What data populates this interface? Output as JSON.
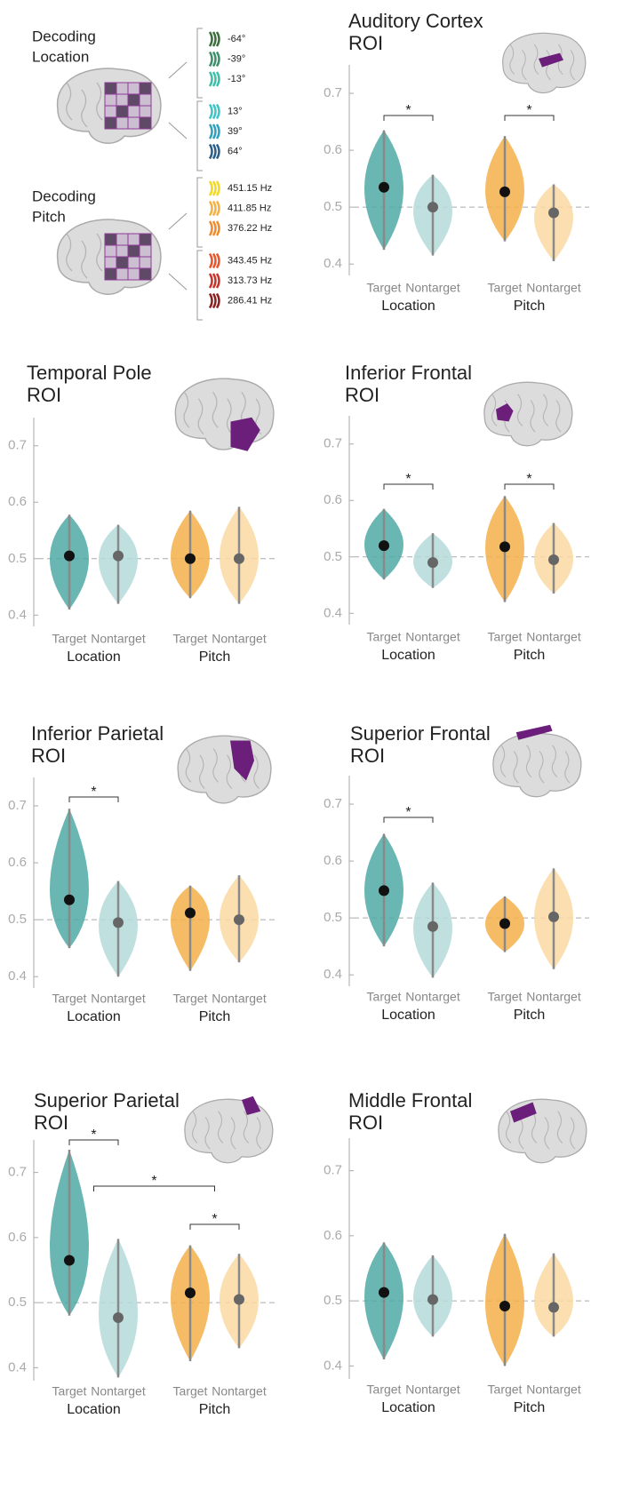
{
  "diagram": {
    "location": {
      "title": [
        "Decoding",
        "Location"
      ],
      "stimuli": [
        {
          "label": "-64°",
          "color": "#3a6e3c"
        },
        {
          "label": "-39°",
          "color": "#3d8f6a"
        },
        {
          "label": "-13°",
          "color": "#3cbfa8"
        },
        {
          "label": "13°",
          "color": "#3cc4c7"
        },
        {
          "label": "39°",
          "color": "#2f9fbf"
        },
        {
          "label": "64°",
          "color": "#2b5f8a"
        }
      ]
    },
    "pitch": {
      "title": [
        "Decoding",
        "Pitch"
      ],
      "stimuli": [
        {
          "label": "451.15 Hz",
          "color": "#f2d81e"
        },
        {
          "label": "411.85 Hz",
          "color": "#f5b042"
        },
        {
          "label": "376.22 Hz",
          "color": "#f08a2a"
        },
        {
          "label": "343.45 Hz",
          "color": "#e8552a"
        },
        {
          "label": "313.73 Hz",
          "color": "#c8322a"
        },
        {
          "label": "286.41 Hz",
          "color": "#8a1f1f"
        }
      ]
    }
  },
  "chart_data": [
    {
      "type": "violin",
      "title": [
        "Auditory Cortex",
        "ROI"
      ],
      "categories": [
        "Target",
        "Nontarget",
        "Target",
        "Nontarget"
      ],
      "groups": [
        "Location",
        "Pitch"
      ],
      "values": [
        0.535,
        0.5,
        0.527,
        0.49
      ],
      "mins": [
        0.425,
        0.415,
        0.44,
        0.405
      ],
      "maxs": [
        0.635,
        0.557,
        0.625,
        0.54
      ],
      "colors": [
        "#4fa9a6",
        "#b5dada",
        "#f5b04a",
        "#fcd9a3"
      ],
      "ylim": [
        0.38,
        0.75
      ],
      "yticks": [
        0.4,
        0.5,
        0.6,
        0.7
      ],
      "chance": 0.5,
      "significance": [
        {
          "from": [
            0
          ],
          "to": [
            1
          ],
          "label": "*"
        },
        {
          "from": [
            2
          ],
          "to": [
            3
          ],
          "label": "*"
        }
      ]
    },
    {
      "type": "violin",
      "title": [
        "Temporal Pole",
        "ROI"
      ],
      "categories": [
        "Target",
        "Nontarget",
        "Target",
        "Nontarget"
      ],
      "groups": [
        "Location",
        "Pitch"
      ],
      "values": [
        0.505,
        0.505,
        0.5,
        0.5
      ],
      "mins": [
        0.41,
        0.42,
        0.43,
        0.42
      ],
      "maxs": [
        0.578,
        0.56,
        0.585,
        0.592
      ],
      "colors": [
        "#4fa9a6",
        "#b5dada",
        "#f5b04a",
        "#fcd9a3"
      ],
      "ylim": [
        0.38,
        0.75
      ],
      "yticks": [
        0.4,
        0.5,
        0.6,
        0.7
      ],
      "chance": 0.5,
      "significance": []
    },
    {
      "type": "violin",
      "title": [
        "Inferior Frontal",
        "ROI"
      ],
      "categories": [
        "Target",
        "Nontarget",
        "Target",
        "Nontarget"
      ],
      "groups": [
        "Location",
        "Pitch"
      ],
      "values": [
        0.52,
        0.49,
        0.518,
        0.495
      ],
      "mins": [
        0.46,
        0.445,
        0.42,
        0.435
      ],
      "maxs": [
        0.585,
        0.542,
        0.608,
        0.56
      ],
      "colors": [
        "#4fa9a6",
        "#b5dada",
        "#f5b04a",
        "#fcd9a3"
      ],
      "ylim": [
        0.38,
        0.75
      ],
      "yticks": [
        0.4,
        0.5,
        0.6,
        0.7
      ],
      "chance": 0.5,
      "significance": [
        {
          "from": [
            0
          ],
          "to": [
            1
          ],
          "label": "*"
        },
        {
          "from": [
            2
          ],
          "to": [
            3
          ],
          "label": "*"
        }
      ]
    },
    {
      "type": "violin",
      "title": [
        "Inferior Parietal",
        "ROI"
      ],
      "categories": [
        "Target",
        "Nontarget",
        "Target",
        "Nontarget"
      ],
      "groups": [
        "Location",
        "Pitch"
      ],
      "values": [
        0.535,
        0.495,
        0.512,
        0.5
      ],
      "mins": [
        0.45,
        0.4,
        0.41,
        0.425
      ],
      "maxs": [
        0.695,
        0.568,
        0.56,
        0.578
      ],
      "colors": [
        "#4fa9a6",
        "#b5dada",
        "#f5b04a",
        "#fcd9a3"
      ],
      "ylim": [
        0.38,
        0.75
      ],
      "yticks": [
        0.4,
        0.5,
        0.6,
        0.7
      ],
      "chance": 0.5,
      "significance": [
        {
          "from": [
            0
          ],
          "to": [
            1
          ],
          "label": "*"
        }
      ]
    },
    {
      "type": "violin",
      "title": [
        "Superior Frontal",
        "ROI"
      ],
      "categories": [
        "Target",
        "Nontarget",
        "Target",
        "Nontarget"
      ],
      "groups": [
        "Location",
        "Pitch"
      ],
      "values": [
        0.548,
        0.485,
        0.49,
        0.502
      ],
      "mins": [
        0.45,
        0.395,
        0.44,
        0.41
      ],
      "maxs": [
        0.648,
        0.562,
        0.538,
        0.587
      ],
      "colors": [
        "#4fa9a6",
        "#b5dada",
        "#f5b04a",
        "#fcd9a3"
      ],
      "ylim": [
        0.38,
        0.75
      ],
      "yticks": [
        0.4,
        0.5,
        0.6,
        0.7
      ],
      "chance": 0.5,
      "significance": [
        {
          "from": [
            0
          ],
          "to": [
            1
          ],
          "label": "*"
        }
      ]
    },
    {
      "type": "violin",
      "title": [
        "Superior Parietal",
        "ROI"
      ],
      "categories": [
        "Target",
        "Nontarget",
        "Target",
        "Nontarget"
      ],
      "groups": [
        "Location",
        "Pitch"
      ],
      "values": [
        0.565,
        0.477,
        0.515,
        0.505
      ],
      "mins": [
        0.48,
        0.385,
        0.41,
        0.43
      ],
      "maxs": [
        0.735,
        0.598,
        0.588,
        0.575
      ],
      "colors": [
        "#4fa9a6",
        "#b5dada",
        "#f5b04a",
        "#fcd9a3"
      ],
      "ylim": [
        0.38,
        0.75
      ],
      "yticks": [
        0.4,
        0.5,
        0.6,
        0.7
      ],
      "chance": 0.5,
      "significance": [
        {
          "from": [
            0
          ],
          "to": [
            1
          ],
          "label": "*"
        },
        {
          "from": [
            0,
            1
          ],
          "to": [
            2,
            3
          ],
          "label": "*"
        },
        {
          "from": [
            2
          ],
          "to": [
            3
          ],
          "label": "*"
        }
      ]
    },
    {
      "type": "violin",
      "title": [
        "Middle Frontal",
        "ROI"
      ],
      "categories": [
        "Target",
        "Nontarget",
        "Target",
        "Nontarget"
      ],
      "groups": [
        "Location",
        "Pitch"
      ],
      "values": [
        0.513,
        0.502,
        0.492,
        0.49
      ],
      "mins": [
        0.41,
        0.445,
        0.4,
        0.445
      ],
      "maxs": [
        0.59,
        0.57,
        0.603,
        0.573
      ],
      "colors": [
        "#4fa9a6",
        "#b5dada",
        "#f5b04a",
        "#fcd9a3"
      ],
      "ylim": [
        0.38,
        0.75
      ],
      "yticks": [
        0.4,
        0.5,
        0.6,
        0.7
      ],
      "chance": 0.5,
      "significance": []
    }
  ]
}
